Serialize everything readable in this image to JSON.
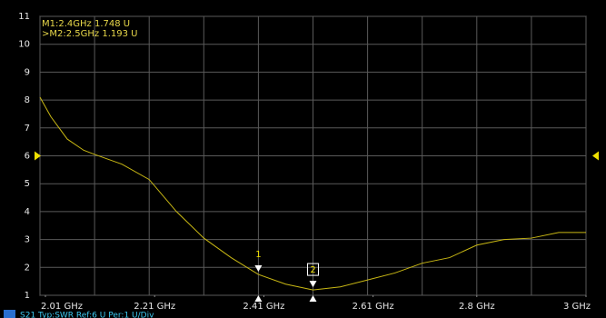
{
  "chart_data": {
    "type": "line",
    "xlim": [
      2.0,
      3.0
    ],
    "ylim": [
      1,
      11
    ],
    "yticks": [
      1,
      2,
      3,
      4,
      5,
      6,
      7,
      8,
      9,
      10,
      11
    ],
    "xticks": [
      {
        "value": 2.01,
        "label": "2.01 GHz"
      },
      {
        "value": 2.21,
        "label": "2.21 GHz"
      },
      {
        "value": 2.41,
        "label": "2.41 GHz"
      },
      {
        "value": 2.61,
        "label": "2.61 GHz"
      },
      {
        "value": 2.8,
        "label": "2.8 GHz"
      },
      {
        "value": 3,
        "label": "3 GHz"
      }
    ],
    "xgrid": [
      2.0,
      2.1,
      2.2,
      2.3,
      2.4,
      2.5,
      2.6,
      2.7,
      2.8,
      2.9,
      3.0
    ],
    "grid": true,
    "reference_level": 6,
    "series": [
      {
        "name": "S21",
        "color": "#c9b814",
        "x": [
          2.0,
          2.02,
          2.05,
          2.08,
          2.1,
          2.15,
          2.2,
          2.25,
          2.3,
          2.35,
          2.4,
          2.45,
          2.5,
          2.55,
          2.6,
          2.65,
          2.7,
          2.75,
          2.8,
          2.85,
          2.9,
          2.95,
          3.0
        ],
        "values": [
          8.1,
          7.4,
          6.6,
          6.2,
          6.05,
          5.7,
          5.15,
          4.0,
          3.05,
          2.35,
          1.748,
          1.4,
          1.193,
          1.3,
          1.55,
          1.8,
          2.15,
          2.35,
          2.8,
          3.0,
          3.05,
          3.25,
          3.25
        ]
      }
    ],
    "markers": [
      {
        "label": "1",
        "x": 2.4,
        "y": 1.748,
        "readout": "M1:2.4GHz 1.748 U"
      },
      {
        "label": "2",
        "x": 2.5,
        "y": 1.193,
        "readout": ">M2:2.5GHz 1.193 U"
      }
    ],
    "status_text": "S21 Typ:SWR Ref:6 U Per:1 U/Div"
  }
}
